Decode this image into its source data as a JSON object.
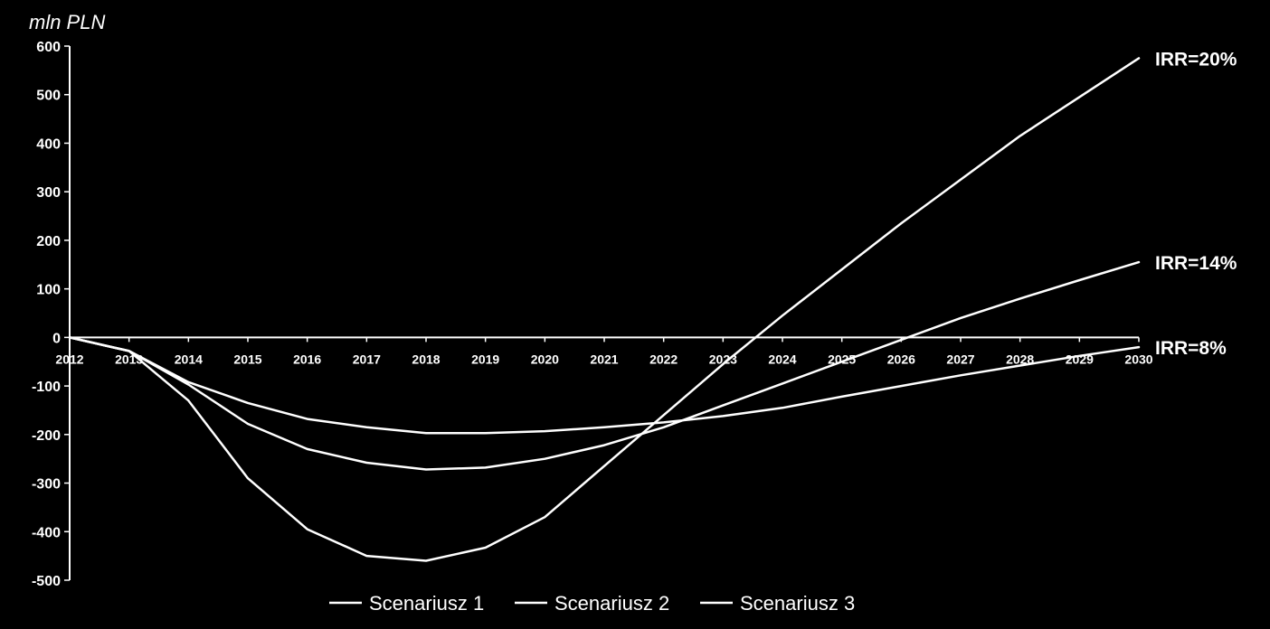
{
  "chart_data": {
    "type": "line",
    "ylabel": "mln PLN",
    "x": [
      2012,
      2013,
      2014,
      2015,
      2016,
      2017,
      2018,
      2019,
      2020,
      2021,
      2022,
      2023,
      2024,
      2025,
      2026,
      2027,
      2028,
      2029,
      2030
    ],
    "x_tick_labels": [
      "2012",
      "2013",
      "2014",
      "2015",
      "2016",
      "2017",
      "2018",
      "2019",
      "2020",
      "2021",
      "2022",
      "2023",
      "2024",
      "2025",
      "2026",
      "2027",
      "2028",
      "2029",
      "2030"
    ],
    "ylim": [
      -500,
      600
    ],
    "y_ticks": [
      600,
      500,
      400,
      300,
      200,
      100,
      0,
      -100,
      -200,
      -300,
      -400,
      -500
    ],
    "series": [
      {
        "name": "Scenariusz 1",
        "color": "#ffffff",
        "values": [
          0,
          -28,
          -92,
          -135,
          -168,
          -185,
          -197,
          -197,
          -193,
          -185,
          -175,
          -162,
          -145,
          -122,
          -100,
          -78,
          -58,
          -38,
          -20
        ]
      },
      {
        "name": "Scenariusz 2",
        "color": "#ffffff",
        "values": [
          0,
          -28,
          -97,
          -178,
          -230,
          -258,
          -272,
          -268,
          -250,
          -222,
          -185,
          -140,
          -95,
          -50,
          -5,
          40,
          80,
          118,
          155
        ]
      },
      {
        "name": "Scenariusz 3",
        "color": "#ffffff",
        "values": [
          0,
          -28,
          -130,
          -290,
          -395,
          -450,
          -460,
          -433,
          -370,
          -265,
          -160,
          -55,
          45,
          140,
          235,
          325,
          415,
          495,
          575
        ]
      }
    ],
    "annotations": [
      {
        "text": "IRR=20%",
        "series": 2
      },
      {
        "text": "IRR=14%",
        "series": 1
      },
      {
        "text": "IRR=8%",
        "series": 0
      }
    ],
    "legend": {
      "placement": "bottom",
      "entries": [
        "Scenariusz 1",
        "Scenariusz 2",
        "Scenariusz 3"
      ]
    },
    "grid": false,
    "colors": {
      "background": "#000000",
      "axis": "#ffffff",
      "text": "#ffffff"
    }
  }
}
